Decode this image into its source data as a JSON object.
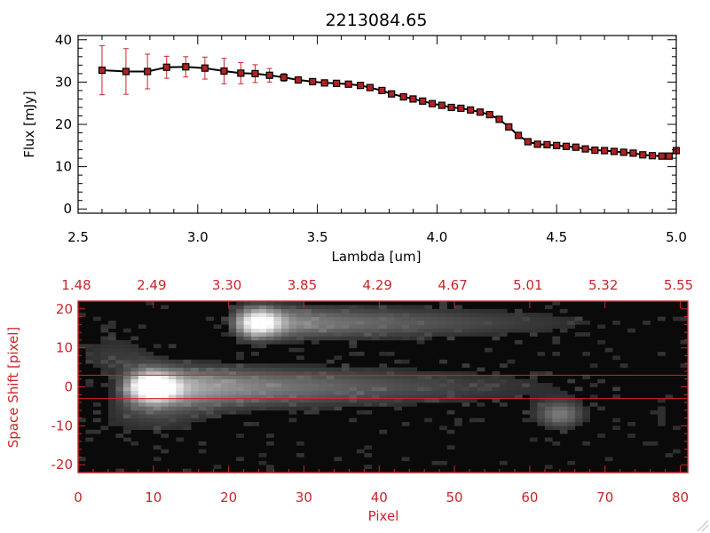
{
  "colors": {
    "axis_black": "#000000",
    "accent_red": "#c8262c",
    "marker_red": "#b22222",
    "image_bg": "#0a0a0a"
  },
  "chart_data": [
    {
      "type": "line",
      "title": "2213084.65",
      "xlabel": "Lambda [um]",
      "ylabel": "Flux [mJy]",
      "xlim": [
        2.5,
        5.0
      ],
      "ylim": [
        -1,
        41
      ],
      "xticks": [
        "2.5",
        "3.0",
        "3.5",
        "4.0",
        "4.5",
        "5.0"
      ],
      "yticks": [
        "0",
        "10",
        "20",
        "30",
        "40"
      ],
      "grid": false,
      "series": [
        {
          "x": [
            2.6,
            2.7,
            2.79,
            2.87,
            2.95,
            3.03,
            3.11,
            3.18,
            3.24,
            3.3,
            3.36,
            3.42,
            3.48,
            3.53,
            3.58,
            3.63,
            3.68,
            3.72,
            3.77,
            3.81,
            3.86,
            3.9,
            3.94,
            3.98,
            4.02,
            4.06,
            4.1,
            4.14,
            4.18,
            4.22,
            4.26,
            4.3,
            4.34,
            4.38,
            4.42,
            4.46,
            4.5,
            4.54,
            4.58,
            4.62,
            4.66,
            4.7,
            4.74,
            4.78,
            4.82,
            4.86,
            4.9,
            4.94,
            4.97,
            5.0
          ],
          "y": [
            32.8,
            32.5,
            32.5,
            33.5,
            33.6,
            33.3,
            32.6,
            32.1,
            32.0,
            31.6,
            31.1,
            30.5,
            30.1,
            29.8,
            29.7,
            29.5,
            29.2,
            28.7,
            28.0,
            27.2,
            26.5,
            26.0,
            25.5,
            24.9,
            24.5,
            24.0,
            23.8,
            23.4,
            22.9,
            22.3,
            21.2,
            19.4,
            17.4,
            15.9,
            15.3,
            15.2,
            15.0,
            14.8,
            14.6,
            14.2,
            13.9,
            13.8,
            13.6,
            13.4,
            13.2,
            12.8,
            12.6,
            12.5,
            12.5,
            13.8
          ],
          "err": [
            5.8,
            5.4,
            4.1,
            2.6,
            2.4,
            2.6,
            3.0,
            2.5,
            2.1,
            1.6,
            0.9,
            0.6,
            0.5,
            0.4,
            0.4,
            0.4,
            0.4,
            0.4,
            0.4,
            0.4,
            0.4,
            0.4,
            0.4,
            0.4,
            0.4,
            0.4,
            0.4,
            0.4,
            0.4,
            0.4,
            0.4,
            0.4,
            0.4,
            0.4,
            0.4,
            0.4,
            0.4,
            0.4,
            0.4,
            0.4,
            0.4,
            0.4,
            0.4,
            0.4,
            0.4,
            0.4,
            0.4,
            0.4,
            0.4,
            0.4
          ]
        }
      ]
    },
    {
      "type": "heatmap",
      "xlabel": "Pixel",
      "ylabel": "Space Shift [pixel]",
      "xlim": [
        0,
        81
      ],
      "ylim": [
        -22,
        22
      ],
      "xticks": [
        "0",
        "10",
        "20",
        "30",
        "40",
        "50",
        "60",
        "70",
        "80"
      ],
      "yticks": [
        "-20",
        "-10",
        "0",
        "10",
        "20"
      ],
      "top_axis_ticks": [
        "1.48",
        "2.49",
        "3.30",
        "3.85",
        "4.29",
        "4.67",
        "5.01",
        "5.32",
        "5.55"
      ],
      "aperture_lines": [
        3,
        -3
      ],
      "sources": [
        {
          "x": 10,
          "y": 0,
          "peak": 1.0
        },
        {
          "x": 24,
          "y": 16.5,
          "peak": 0.8
        },
        {
          "x": 64,
          "y": -7,
          "peak": 0.35
        }
      ]
    }
  ]
}
